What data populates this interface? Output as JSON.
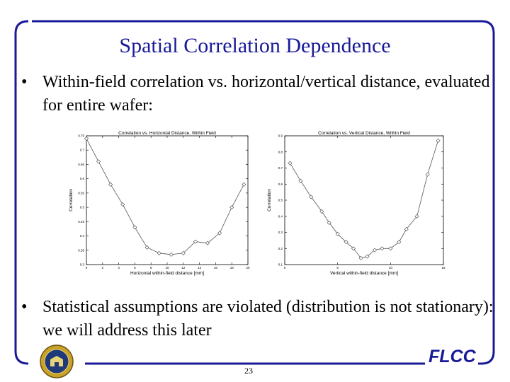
{
  "slide": {
    "title": "Spatial Correlation Dependence",
    "bullets": [
      "Within-field correlation vs. horizontal/vertical distance, evaluated for entire wafer:",
      "Statistical assumptions are violated (distribution is not stationary):  we will address this later"
    ],
    "bullet_symbol": "•",
    "page_number": "23",
    "footer_logo_text": "FLCC",
    "frame_color": "#1a1a99",
    "title_color": "#1a1a99"
  },
  "chart_data": [
    {
      "type": "line",
      "title": "Correlation vs. Horizontal Distance, Within Field",
      "xlabel": "Horizontal within-field distance [mm]",
      "ylabel": "Correlation",
      "xlim": [
        0,
        20
      ],
      "ylim": [
        0.3,
        0.75
      ],
      "x_ticks": [
        "0",
        "2",
        "4",
        "6",
        "8",
        "10",
        "12",
        "14",
        "16",
        "18",
        "20"
      ],
      "y_ticks": [
        "0.3",
        "0.35",
        "0.4",
        "0.45",
        "0.5",
        "0.55",
        "0.6",
        "0.65",
        "0.7",
        "0.75"
      ],
      "x": [
        0,
        1.5,
        3,
        4.5,
        6,
        7.5,
        9,
        10.5,
        12,
        13.5,
        15,
        16.5,
        18,
        19.5
      ],
      "y": [
        0.74,
        0.66,
        0.58,
        0.51,
        0.43,
        0.36,
        0.34,
        0.335,
        0.34,
        0.38,
        0.375,
        0.41,
        0.5,
        0.58
      ]
    },
    {
      "type": "line",
      "title": "Correlation vs. Vertical Distance, Within Field",
      "xlabel": "Vertical within-field distance [mm]",
      "ylabel": "Correlation",
      "xlim": [
        0,
        15
      ],
      "ylim": [
        0.1,
        0.9
      ],
      "x_ticks": [
        "0",
        "5",
        "10",
        "15"
      ],
      "y_ticks": [
        "0.1",
        "0.2",
        "0.3",
        "0.4",
        "0.5",
        "0.6",
        "0.7",
        "0.8",
        "0.9"
      ],
      "x": [
        0.5,
        1.5,
        2.5,
        3.5,
        4.2,
        5,
        5.8,
        6.5,
        7.2,
        7.8,
        8.5,
        9.2,
        10,
        10.8,
        11.5,
        12.5,
        13.5,
        14.5
      ],
      "y": [
        0.73,
        0.62,
        0.52,
        0.43,
        0.36,
        0.29,
        0.24,
        0.2,
        0.14,
        0.15,
        0.19,
        0.2,
        0.2,
        0.24,
        0.32,
        0.4,
        0.66,
        0.87
      ]
    }
  ]
}
